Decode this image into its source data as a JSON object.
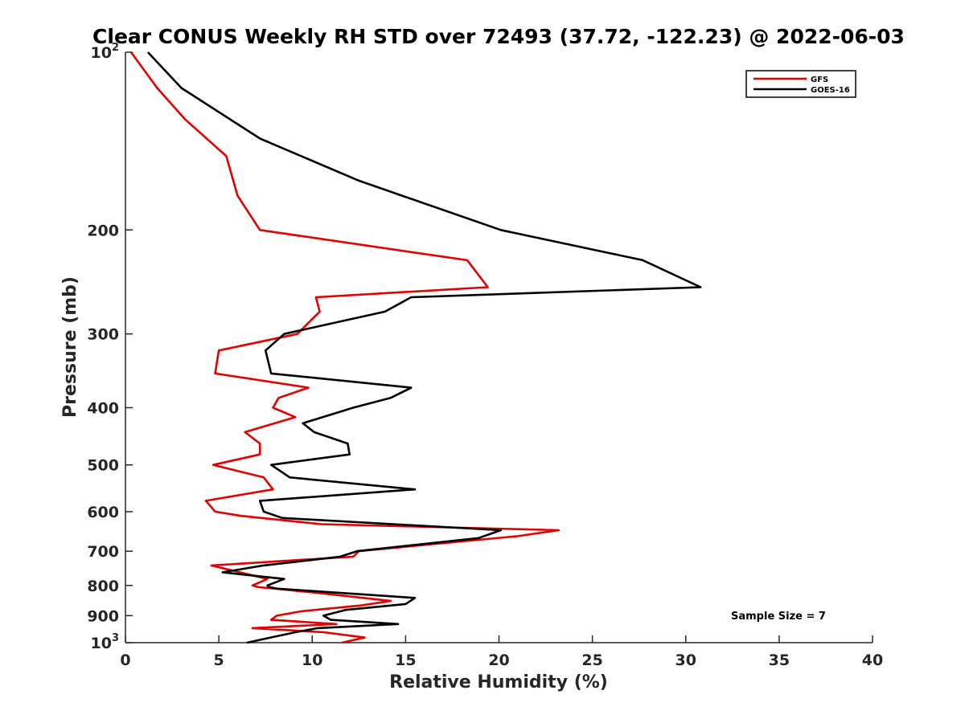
{
  "chart_data": {
    "type": "line",
    "title": "Clear CONUS Weekly RH STD over 72493 (37.72, -122.23) @ 2022-06-03",
    "xlabel": "Relative Humidity (%)",
    "ylabel": "Pressure (mb)",
    "xlim": [
      0,
      40
    ],
    "ylim": [
      100,
      1000
    ],
    "y_scale": "log",
    "y_reversed": true,
    "x_ticks": [
      0,
      5,
      10,
      15,
      20,
      25,
      30,
      35,
      40
    ],
    "y_ticks": [
      {
        "value": 100,
        "base": "10",
        "exp": "2"
      },
      {
        "value": 200,
        "base": "200",
        "exp": ""
      },
      {
        "value": 300,
        "base": "300",
        "exp": ""
      },
      {
        "value": 400,
        "base": "400",
        "exp": ""
      },
      {
        "value": 500,
        "base": "500",
        "exp": ""
      },
      {
        "value": 600,
        "base": "600",
        "exp": ""
      },
      {
        "value": 700,
        "base": "700",
        "exp": ""
      },
      {
        "value": 800,
        "base": "800",
        "exp": ""
      },
      {
        "value": 900,
        "base": "900",
        "exp": ""
      },
      {
        "value": 1000,
        "base": "10",
        "exp": "3"
      }
    ],
    "grid": false,
    "legend": {
      "placement": "top-right",
      "entries": [
        "GFS",
        "GOES-16"
      ]
    },
    "annotation": "Sample Size = 7",
    "series": [
      {
        "name": "GFS",
        "color": "#e00000",
        "points": [
          [
            0.3,
            100
          ],
          [
            1.7,
            115
          ],
          [
            3.2,
            130
          ],
          [
            5.4,
            150
          ],
          [
            6.0,
            175
          ],
          [
            7.2,
            200
          ],
          [
            18.3,
            225
          ],
          [
            19.4,
            250
          ],
          [
            10.2,
            260
          ],
          [
            10.4,
            275
          ],
          [
            9.2,
            300
          ],
          [
            5.0,
            320
          ],
          [
            4.8,
            350
          ],
          [
            9.8,
            370
          ],
          [
            8.2,
            385
          ],
          [
            7.9,
            400
          ],
          [
            9.1,
            415
          ],
          [
            6.4,
            440
          ],
          [
            7.2,
            460
          ],
          [
            7.2,
            480
          ],
          [
            4.7,
            500
          ],
          [
            7.4,
            525
          ],
          [
            7.9,
            550
          ],
          [
            4.3,
            575
          ],
          [
            4.8,
            600
          ],
          [
            6.2,
            610
          ],
          [
            10.5,
            630
          ],
          [
            23.2,
            645
          ],
          [
            21.0,
            660
          ],
          [
            12.5,
            700
          ],
          [
            12.2,
            715
          ],
          [
            4.6,
            740
          ],
          [
            7.6,
            780
          ],
          [
            6.8,
            800
          ],
          [
            7.1,
            805
          ],
          [
            8.0,
            810
          ],
          [
            10.5,
            825
          ],
          [
            14.2,
            850
          ],
          [
            12.6,
            865
          ],
          [
            9.4,
            885
          ],
          [
            8.1,
            900
          ],
          [
            7.8,
            915
          ],
          [
            11.3,
            930
          ],
          [
            6.8,
            945
          ],
          [
            10.6,
            960
          ],
          [
            12.8,
            980
          ],
          [
            11.6,
            1000
          ]
        ]
      },
      {
        "name": "GOES-16",
        "color": "#000000",
        "points": [
          [
            1.2,
            100
          ],
          [
            3.0,
            115
          ],
          [
            7.2,
            140
          ],
          [
            12.5,
            165
          ],
          [
            20.1,
            200
          ],
          [
            27.7,
            225
          ],
          [
            30.8,
            250
          ],
          [
            15.3,
            260
          ],
          [
            13.9,
            275
          ],
          [
            8.5,
            300
          ],
          [
            7.5,
            320
          ],
          [
            7.8,
            350
          ],
          [
            15.3,
            370
          ],
          [
            14.2,
            385
          ],
          [
            12.2,
            400
          ],
          [
            9.5,
            425
          ],
          [
            10.1,
            440
          ],
          [
            11.9,
            460
          ],
          [
            12.0,
            480
          ],
          [
            7.8,
            500
          ],
          [
            8.8,
            525
          ],
          [
            15.5,
            550
          ],
          [
            7.2,
            575
          ],
          [
            7.4,
            600
          ],
          [
            8.4,
            615
          ],
          [
            20.1,
            645
          ],
          [
            18.9,
            665
          ],
          [
            12.4,
            700
          ],
          [
            11.5,
            715
          ],
          [
            7.4,
            740
          ],
          [
            5.2,
            760
          ],
          [
            8.5,
            780
          ],
          [
            7.6,
            800
          ],
          [
            7.7,
            805
          ],
          [
            8.1,
            810
          ],
          [
            15.5,
            840
          ],
          [
            15.0,
            860
          ],
          [
            11.8,
            880
          ],
          [
            10.6,
            900
          ],
          [
            11.0,
            915
          ],
          [
            14.6,
            930
          ],
          [
            10.3,
            945
          ],
          [
            9.1,
            960
          ],
          [
            6.5,
            1000
          ]
        ]
      }
    ]
  }
}
